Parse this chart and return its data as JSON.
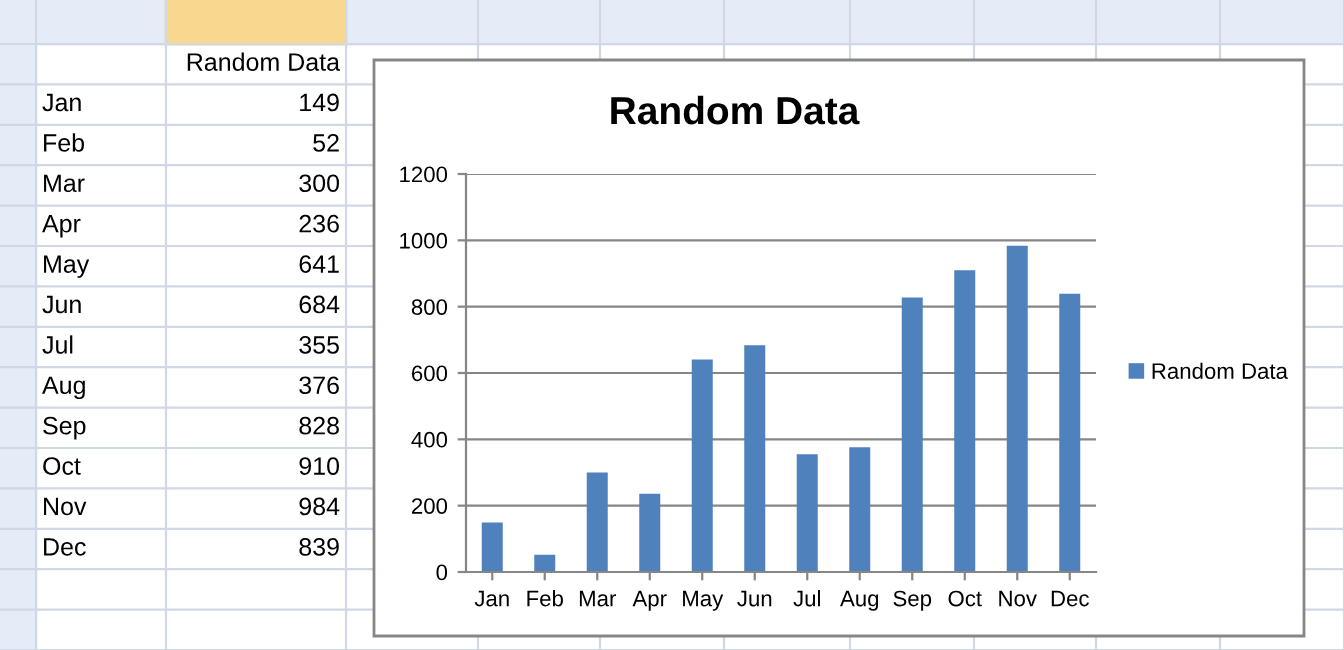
{
  "chart_data": [
    {
      "type": "other",
      "annotations": [
        "Random Data",
        "Jan",
        "149",
        "Feb",
        "52",
        "Mar",
        "300",
        "Apr",
        "236",
        "May",
        "641",
        "Jun",
        "684",
        "Jul",
        "355",
        "Aug",
        "376",
        "Sep",
        "828",
        "Oct",
        "910",
        "Nov",
        "984",
        "Dec",
        "839"
      ]
    },
    {
      "type": "bar",
      "title": "Random Data",
      "categories": [
        "Jan",
        "Feb",
        "Mar",
        "Apr",
        "May",
        "Jun",
        "Jul",
        "Aug",
        "Sep",
        "Oct",
        "Nov",
        "Dec"
      ],
      "series": [
        {
          "name": "Random Data",
          "color": "#4f81bd",
          "values": [
            149,
            52,
            300,
            236,
            641,
            684,
            355,
            376,
            828,
            910,
            984,
            839
          ]
        }
      ],
      "ylim": [
        0,
        1200
      ],
      "yticks": [
        0,
        200,
        400,
        600,
        800,
        1000,
        1200
      ],
      "grid": "y",
      "legend": "right"
    }
  ]
}
